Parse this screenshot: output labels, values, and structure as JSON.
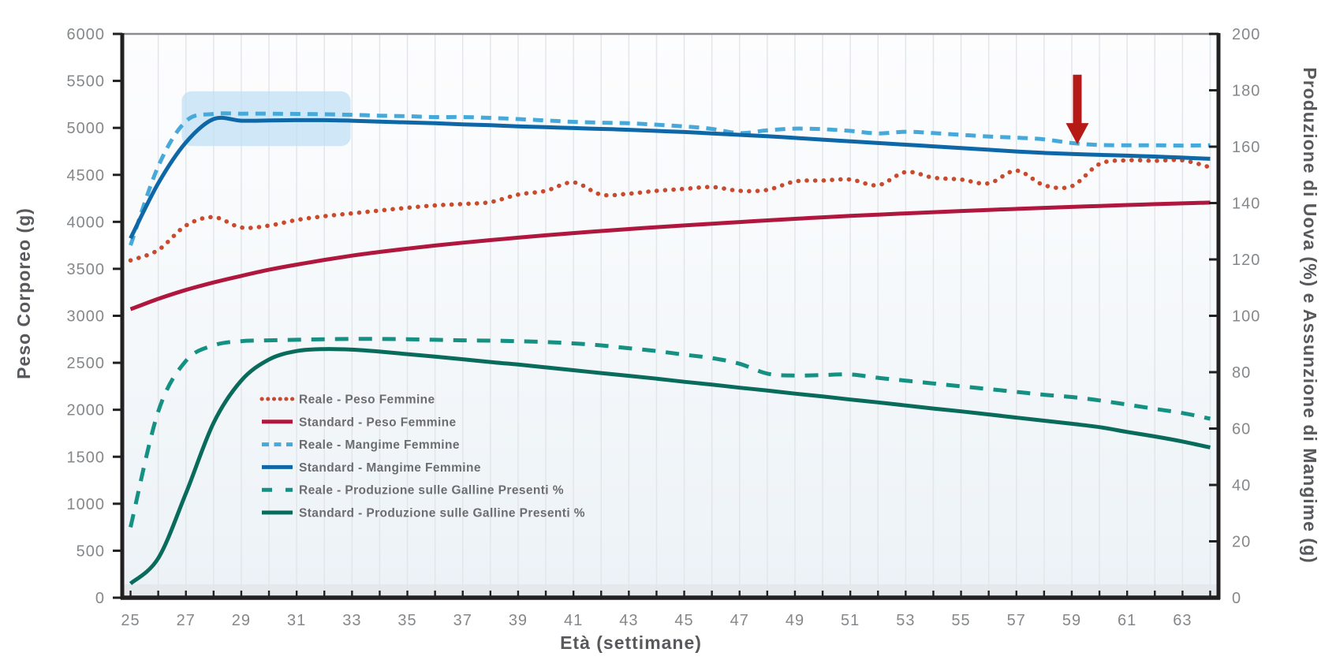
{
  "chart_data": {
    "type": "line",
    "title": "",
    "xlabel": "Età (settimane)",
    "ylabel_left": "Peso Corporeo (g)",
    "ylabel_right": "Produzione di Uova (%) e Assunzione di Mangime (g)",
    "x_tick_labels": [
      25,
      27,
      29,
      31,
      33,
      35,
      37,
      39,
      41,
      43,
      45,
      47,
      49,
      51,
      53,
      55,
      57,
      59,
      61,
      63
    ],
    "x_minor_week_start": 25,
    "x_minor_week_end": 64,
    "y_left": {
      "min": 0,
      "max": 6000,
      "ticks": [
        0,
        500,
        1000,
        1500,
        2000,
        2500,
        3000,
        3500,
        4000,
        4500,
        5000,
        5500,
        6000
      ]
    },
    "y_right": {
      "min": 0,
      "max": 200,
      "ticks": [
        0,
        20,
        40,
        60,
        80,
        100,
        120,
        140,
        160,
        180,
        200
      ]
    },
    "grid": true,
    "legend_position": "inside-left-middle",
    "weeks": [
      25,
      26,
      27,
      28,
      29,
      30,
      31,
      32,
      33,
      34,
      35,
      36,
      37,
      38,
      39,
      40,
      41,
      42,
      43,
      44,
      45,
      46,
      47,
      48,
      49,
      50,
      51,
      52,
      53,
      54,
      55,
      56,
      57,
      58,
      59,
      60,
      61,
      62,
      63,
      64
    ],
    "series": [
      {
        "name": "Reale - Peso Femmine",
        "axis": "left",
        "style": "dot",
        "color": "#c94a2c",
        "values": [
          3590,
          3700,
          3960,
          4050,
          3940,
          3960,
          4020,
          4060,
          4090,
          4120,
          4150,
          4175,
          4190,
          4210,
          4290,
          4330,
          4420,
          4290,
          4300,
          4330,
          4350,
          4370,
          4330,
          4340,
          4430,
          4440,
          4450,
          4390,
          4530,
          4470,
          4450,
          4410,
          4545,
          4390,
          4380,
          4615,
          4655,
          4650,
          4655,
          4580
        ]
      },
      {
        "name": "Standard - Peso Femmine",
        "axis": "left",
        "style": "solid",
        "color": "#b0173f",
        "values": [
          3070,
          3180,
          3275,
          3355,
          3425,
          3490,
          3545,
          3595,
          3640,
          3680,
          3715,
          3748,
          3778,
          3806,
          3832,
          3857,
          3880,
          3902,
          3923,
          3943,
          3962,
          3980,
          3998,
          4015,
          4032,
          4048,
          4063,
          4077,
          4090,
          4103,
          4115,
          4127,
          4138,
          4149,
          4159,
          4169,
          4179,
          4188,
          4197,
          4205
        ]
      },
      {
        "name": "Reale - Mangime Femmine",
        "axis": "right",
        "style": "dash",
        "color": "#47a9da",
        "values": [
          125,
          153,
          169,
          171.6,
          171.7,
          171.7,
          171.6,
          171.5,
          171.3,
          171.0,
          170.8,
          170.5,
          170.5,
          170.2,
          169.8,
          169.3,
          168.8,
          168.5,
          168.3,
          167.8,
          167.2,
          166.3,
          164.8,
          165.8,
          166.4,
          166.2,
          165.6,
          164.7,
          165.3,
          164.8,
          164.2,
          163.6,
          163.2,
          162.6,
          161.3,
          160.6,
          160.5,
          160.5,
          160.4,
          160.5
        ]
      },
      {
        "name": "Standard - Mangime Femmine",
        "axis": "right",
        "style": "solid",
        "color": "#0e67a6",
        "values": [
          127.5,
          147,
          161.5,
          169.8,
          169.2,
          169.3,
          169.4,
          169.4,
          169.2,
          168.9,
          168.6,
          168.3,
          167.9,
          167.6,
          167.2,
          166.9,
          166.6,
          166.3,
          166.0,
          165.6,
          165.2,
          164.7,
          164.2,
          163.7,
          163.1,
          162.5,
          161.9,
          161.3,
          160.7,
          160.1,
          159.5,
          158.9,
          158.3,
          157.8,
          157.4,
          157.1,
          156.8,
          156.5,
          156.1,
          155.7
        ]
      },
      {
        "name": "Reale - Produzione sulle Galline Presenti %",
        "axis": "right",
        "style": "longdash",
        "color": "#159184",
        "values": [
          25,
          66,
          84,
          89.5,
          91,
          91.3,
          91.5,
          91.7,
          91.8,
          91.8,
          91.7,
          91.5,
          91.3,
          91.2,
          91.0,
          90.7,
          90.2,
          89.5,
          88.5,
          87.5,
          86.2,
          85.0,
          83.0,
          79.5,
          78.8,
          79.0,
          79.2,
          78.0,
          77.0,
          76.0,
          75.0,
          74.0,
          73.0,
          72.0,
          71.2,
          70.0,
          68.5,
          67.0,
          65.5,
          63.5
        ]
      },
      {
        "name": "Standard - Produzione sulle Galline Presenti %",
        "axis": "right",
        "style": "solid",
        "color": "#096b5b",
        "values": [
          5,
          14,
          37,
          62,
          77,
          84.5,
          87.5,
          88.2,
          88.0,
          87.3,
          86.4,
          85.5,
          84.6,
          83.6,
          82.7,
          81.7,
          80.7,
          79.7,
          78.7,
          77.7,
          76.6,
          75.6,
          74.5,
          73.5,
          72.4,
          71.4,
          70.3,
          69.3,
          68.2,
          67.1,
          66.1,
          65.0,
          63.9,
          62.8,
          61.7,
          60.5,
          58.8,
          57.2,
          55.4,
          53.3
        ]
      }
    ],
    "annotations": {
      "highlight_region": {
        "week_start": 26.85,
        "week_end": 32.95,
        "right_value_low": 160.2,
        "right_value_high": 179.6,
        "color": "#bedff2",
        "opacity": 0.72
      },
      "arrow": {
        "week": 59.2,
        "from_right_value": 185.5,
        "to_right_value": 160.8,
        "color": "#b51a16"
      }
    },
    "colors": {
      "grid": "#e3e6e9",
      "axis_line": "#232021",
      "frame_top": "#8a8c8f",
      "tick_text": "#85888b",
      "axis_title_text": "#57595c",
      "legend_text": "#6b6d70",
      "bottom_band": "#e6e9ec",
      "plot_bg_top": "#fdfdfe",
      "plot_bg_mid": "#f6f9fb",
      "plot_bg_bottom": "#ecf2f7"
    }
  }
}
